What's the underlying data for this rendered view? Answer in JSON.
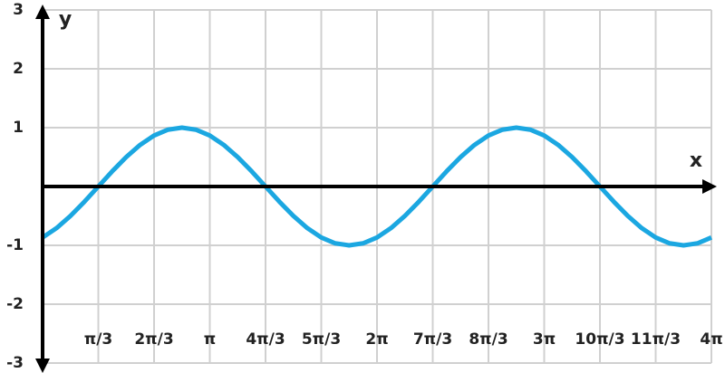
{
  "chart_data": {
    "type": "line",
    "x_label": "x",
    "y_label": "y",
    "x": [
      0,
      0.2618,
      0.5236,
      0.7854,
      1.0472,
      1.309,
      1.5708,
      1.8326,
      2.0944,
      2.3562,
      2.618,
      2.8798,
      3.1416,
      3.4034,
      3.6652,
      3.927,
      4.1888,
      4.4506,
      4.7124,
      4.9742,
      5.236,
      5.4978,
      5.7596,
      6.0214,
      6.2832,
      6.545,
      6.8068,
      7.0686,
      7.3304,
      7.5922,
      7.854,
      8.1158,
      8.3776,
      8.6394,
      8.9012,
      9.163,
      9.4248,
      9.6866,
      9.9484,
      10.2102,
      10.472,
      10.7338,
      10.9956,
      11.2574,
      11.5192,
      11.781,
      12.0428,
      12.3046,
      12.5664
    ],
    "series": [
      {
        "color": "#1ba7e1",
        "values": [
          -0.866,
          -0.7071,
          -0.5,
          -0.2588,
          0,
          0.2588,
          0.5,
          0.7071,
          0.866,
          0.9659,
          1,
          0.9659,
          0.866,
          0.7071,
          0.5,
          0.2588,
          0,
          -0.2588,
          -0.5,
          -0.7071,
          -0.866,
          -0.9659,
          -1,
          -0.9659,
          -0.866,
          -0.7071,
          -0.5,
          -0.2588,
          0,
          0.2588,
          0.5,
          0.7071,
          0.866,
          0.9659,
          1,
          0.9659,
          0.866,
          0.7071,
          0.5,
          0.2588,
          0,
          -0.2588,
          -0.5,
          -0.7071,
          -0.866,
          -0.9659,
          -1,
          -0.9659,
          -0.866
        ]
      }
    ],
    "xlim": [
      0,
      12.5664
    ],
    "ylim": [
      -3,
      3
    ],
    "xticks": [
      {
        "value": 1.0472,
        "label": "π/3"
      },
      {
        "value": 2.0944,
        "label": "2π/3"
      },
      {
        "value": 3.1416,
        "label": "π"
      },
      {
        "value": 4.1888,
        "label": "4π/3"
      },
      {
        "value": 5.236,
        "label": "5π/3"
      },
      {
        "value": 6.2832,
        "label": "2π"
      },
      {
        "value": 7.3304,
        "label": "7π/3"
      },
      {
        "value": 8.3776,
        "label": "8π/3"
      },
      {
        "value": 9.4248,
        "label": "3π"
      },
      {
        "value": 10.472,
        "label": "10π/3"
      },
      {
        "value": 11.5192,
        "label": "11π/3"
      },
      {
        "value": 12.5664,
        "label": "4π"
      }
    ],
    "yticks": [
      -3,
      -2,
      -1,
      1,
      2,
      3
    ],
    "grid": true
  }
}
